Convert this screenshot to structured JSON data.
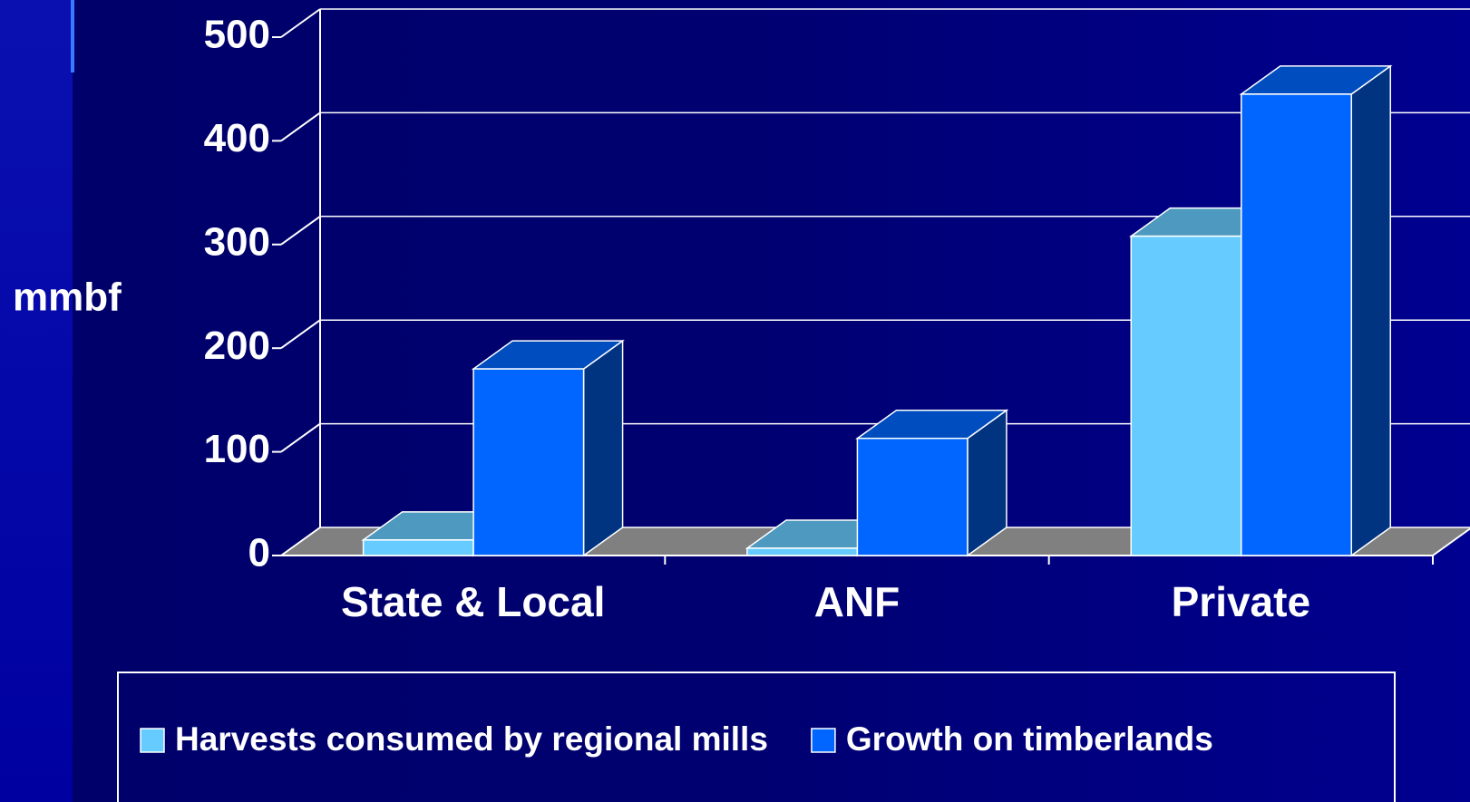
{
  "chart_data": {
    "type": "bar3d",
    "axis_label": "mmbf",
    "categories": [
      "State & Local",
      "ANF",
      "Private"
    ],
    "series": [
      {
        "name": "Harvests consumed by regional mills",
        "color": "#66ccff",
        "values": [
          15,
          7,
          308
        ]
      },
      {
        "name": "Growth on timberlands",
        "color": "#0066ff",
        "values": [
          180,
          113,
          445
        ]
      }
    ],
    "ylim": [
      0,
      500
    ],
    "yticks": [
      0,
      100,
      200,
      300,
      400,
      500
    ],
    "grid": true,
    "legend": "bottom"
  }
}
